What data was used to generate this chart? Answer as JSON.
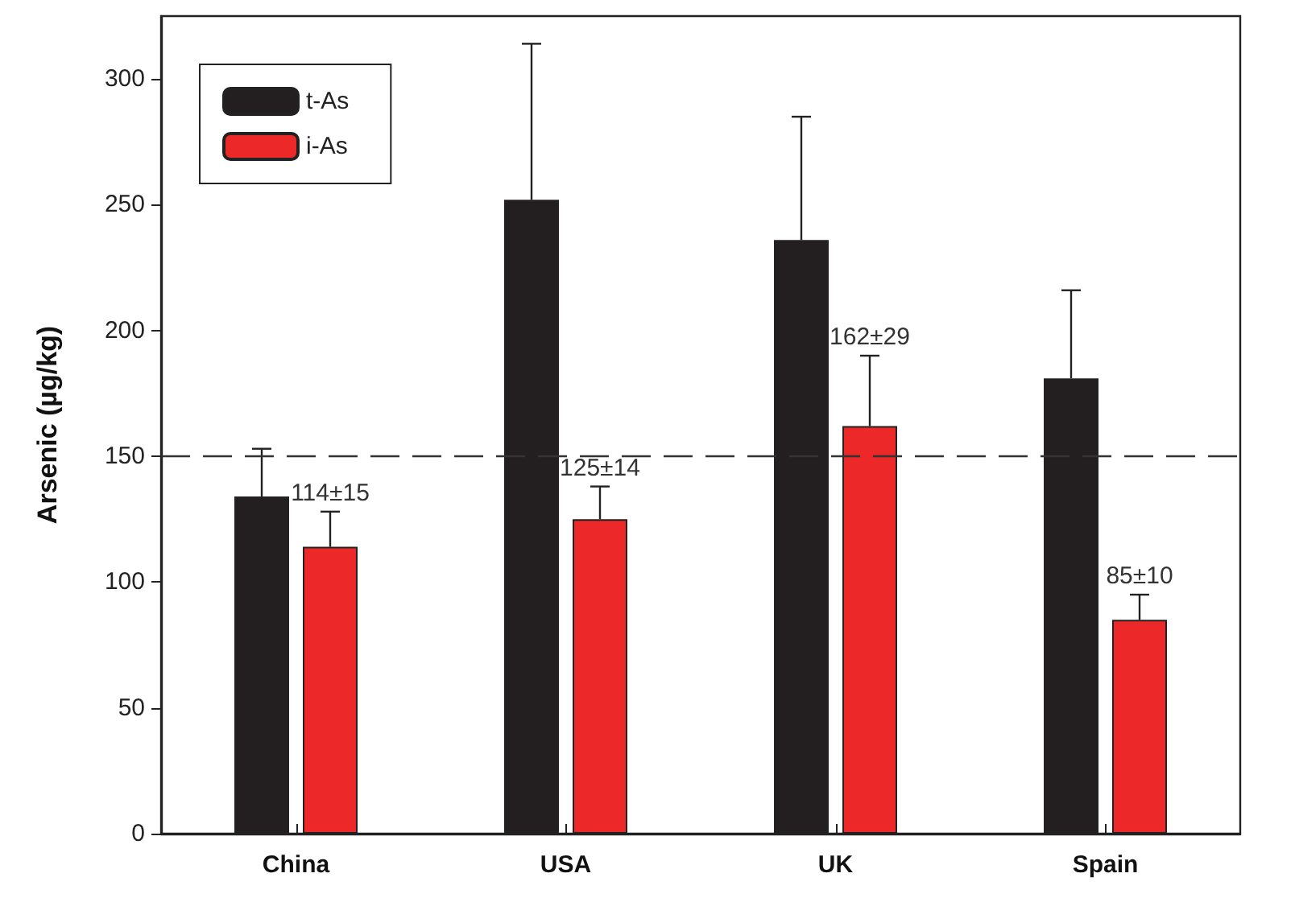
{
  "chart_data": {
    "type": "bar",
    "ylabel": "Arsenic (µg/kg)",
    "categories": [
      "China",
      "USA",
      "UK",
      "Spain"
    ],
    "series": [
      {
        "name": "t-As",
        "color": "#231f20",
        "values": [
          134,
          252,
          236,
          181
        ],
        "errors": [
          [
            134,
            153
          ],
          [
            252,
            314
          ],
          [
            236,
            285
          ],
          [
            181,
            216
          ]
        ]
      },
      {
        "name": "i-As",
        "color": "#ec2828",
        "values": [
          114,
          125,
          162,
          85
        ],
        "errors": [
          [
            114,
            128
          ],
          [
            125,
            138
          ],
          [
            162,
            190
          ],
          [
            85,
            95
          ]
        ],
        "value_labels": [
          "114±15",
          "125±14",
          "162±29",
          "85±10"
        ]
      }
    ],
    "ylim": [
      0,
      325
    ],
    "yticks": [
      0,
      50,
      100,
      150,
      200,
      250,
      300
    ],
    "ref_lines": [
      {
        "axis": "y",
        "value": 150,
        "line_style": "dashed",
        "color": "#333333"
      }
    ],
    "grid": false,
    "legend": "top left"
  }
}
